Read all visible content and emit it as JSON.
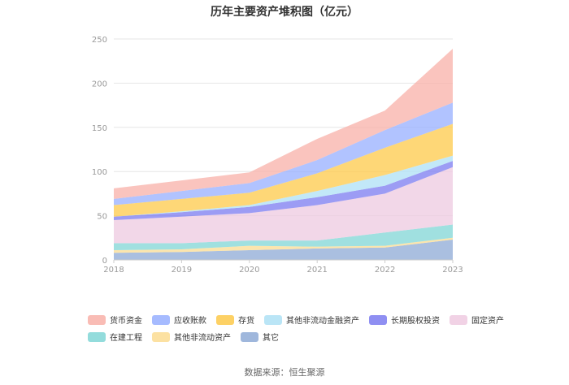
{
  "chart_data": {
    "type": "area",
    "stacked": true,
    "title": "历年主要资产堆积图（亿元）",
    "categories": [
      "2018",
      "2019",
      "2020",
      "2021",
      "2022",
      "2023"
    ],
    "ylim": [
      0,
      250
    ],
    "yticks": [
      0,
      50,
      100,
      150,
      200,
      250
    ],
    "grid": true,
    "legend_position": "bottom",
    "series": [
      {
        "name": "其它",
        "color": "#8eaad6",
        "values": [
          8,
          9,
          11,
          13,
          14,
          23
        ]
      },
      {
        "name": "其他非流动资产",
        "color": "#fbdc92",
        "values": [
          3,
          3,
          5,
          2,
          2,
          2
        ]
      },
      {
        "name": "在建工程",
        "color": "#80d6d6",
        "values": [
          8,
          7,
          6,
          7,
          15,
          15
        ]
      },
      {
        "name": "固定资产",
        "color": "#eecae0",
        "values": [
          26,
          30,
          31,
          40,
          44,
          65
        ]
      },
      {
        "name": "长期股权投资",
        "color": "#7b7bf0",
        "values": [
          4,
          5,
          7,
          9,
          9,
          7
        ]
      },
      {
        "name": "其他非流动金融资产",
        "color": "#aee0f5",
        "values": [
          0,
          1,
          2,
          7,
          12,
          6
        ]
      },
      {
        "name": "存货",
        "color": "#fdc94a",
        "values": [
          13,
          14,
          14,
          20,
          31,
          36
        ]
      },
      {
        "name": "应收账款",
        "color": "#97afff",
        "values": [
          7,
          9,
          11,
          15,
          20,
          24
        ]
      },
      {
        "name": "货币资金",
        "color": "#f8b0a8",
        "values": [
          12,
          12,
          12,
          24,
          22,
          61
        ]
      }
    ],
    "legend_order": [
      "货币资金",
      "应收账款",
      "存货",
      "其他非流动金融资产",
      "长期股权投资",
      "固定资产",
      "在建工程",
      "其他非流动资产",
      "其它"
    ]
  },
  "source_text": "数据来源：恒生聚源"
}
